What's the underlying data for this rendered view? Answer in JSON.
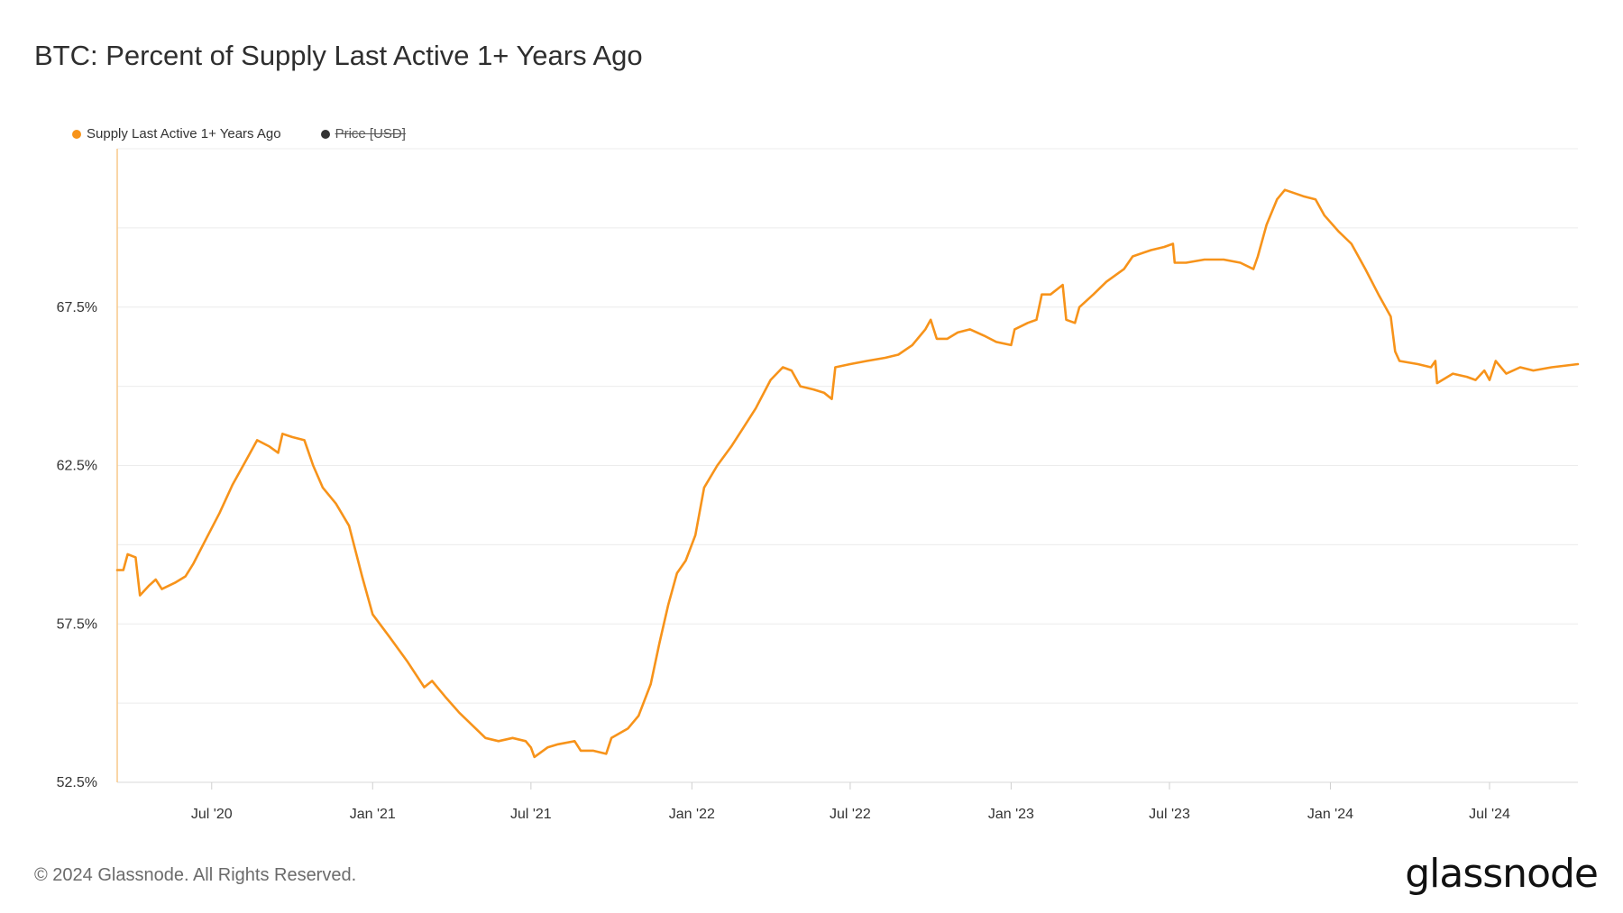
{
  "header": {
    "title": "BTC: Percent of Supply Last Active 1+ Years Ago"
  },
  "legend": [
    {
      "label": "Supply Last Active 1+ Years Ago",
      "color": "#f7931a",
      "disabled": false
    },
    {
      "label": "Price [USD]",
      "color": "#333333",
      "disabled": true
    }
  ],
  "footer": {
    "copyright": "© 2024 Glassnode. All Rights Reserved.",
    "brand": "glassnode"
  },
  "chart_data": {
    "type": "line",
    "xlim": [
      "2020-03-15",
      "2024-10-10"
    ],
    "ylim": [
      52.5,
      72.5
    ],
    "y_ticks": [
      {
        "value": 52.5,
        "label": "52.5%"
      },
      {
        "value": 57.5,
        "label": "57.5%"
      },
      {
        "value": 62.5,
        "label": "62.5%"
      },
      {
        "value": 67.5,
        "label": "67.5%"
      }
    ],
    "x_ticks": [
      {
        "date": "2020-07-01",
        "label": "Jul '20"
      },
      {
        "date": "2021-01-01",
        "label": "Jan '21"
      },
      {
        "date": "2021-07-01",
        "label": "Jul '21"
      },
      {
        "date": "2022-01-01",
        "label": "Jan '22"
      },
      {
        "date": "2022-07-01",
        "label": "Jul '22"
      },
      {
        "date": "2023-01-01",
        "label": "Jan '23"
      },
      {
        "date": "2023-07-01",
        "label": "Jul '23"
      },
      {
        "date": "2024-01-01",
        "label": "Jan '24"
      },
      {
        "date": "2024-07-01",
        "label": "Jul '24"
      }
    ],
    "grid": true,
    "legend_position": "top-left",
    "series": [
      {
        "name": "Supply Last Active 1+ Years Ago",
        "color": "#f7931a",
        "points": [
          [
            "2020-03-15",
            59.2
          ],
          [
            "2020-03-22",
            59.2
          ],
          [
            "2020-03-27",
            59.7
          ],
          [
            "2020-04-05",
            59.6
          ],
          [
            "2020-04-10",
            58.4
          ],
          [
            "2020-04-20",
            58.7
          ],
          [
            "2020-04-28",
            58.9
          ],
          [
            "2020-05-05",
            58.6
          ],
          [
            "2020-05-20",
            58.8
          ],
          [
            "2020-06-01",
            59.0
          ],
          [
            "2020-06-10",
            59.4
          ],
          [
            "2020-06-25",
            60.2
          ],
          [
            "2020-07-10",
            61.0
          ],
          [
            "2020-07-25",
            61.9
          ],
          [
            "2020-08-10",
            62.7
          ],
          [
            "2020-08-22",
            63.3
          ],
          [
            "2020-09-05",
            63.1
          ],
          [
            "2020-09-15",
            62.9
          ],
          [
            "2020-09-20",
            63.5
          ],
          [
            "2020-10-01",
            63.4
          ],
          [
            "2020-10-15",
            63.3
          ],
          [
            "2020-10-25",
            62.5
          ],
          [
            "2020-11-05",
            61.8
          ],
          [
            "2020-11-20",
            61.3
          ],
          [
            "2020-12-05",
            60.6
          ],
          [
            "2020-12-20",
            59.0
          ],
          [
            "2021-01-01",
            57.8
          ],
          [
            "2021-01-20",
            57.1
          ],
          [
            "2021-02-10",
            56.3
          ],
          [
            "2021-03-01",
            55.5
          ],
          [
            "2021-03-10",
            55.7
          ],
          [
            "2021-03-25",
            55.2
          ],
          [
            "2021-04-10",
            54.7
          ],
          [
            "2021-04-25",
            54.3
          ],
          [
            "2021-05-10",
            53.9
          ],
          [
            "2021-05-25",
            53.8
          ],
          [
            "2021-06-10",
            53.9
          ],
          [
            "2021-06-25",
            53.8
          ],
          [
            "2021-07-01",
            53.6
          ],
          [
            "2021-07-05",
            53.3
          ],
          [
            "2021-07-20",
            53.6
          ],
          [
            "2021-08-01",
            53.7
          ],
          [
            "2021-08-20",
            53.8
          ],
          [
            "2021-08-27",
            53.5
          ],
          [
            "2021-09-10",
            53.5
          ],
          [
            "2021-09-25",
            53.4
          ],
          [
            "2021-10-01",
            53.9
          ],
          [
            "2021-10-20",
            54.2
          ],
          [
            "2021-11-01",
            54.6
          ],
          [
            "2021-11-15",
            55.6
          ],
          [
            "2021-11-25",
            56.9
          ],
          [
            "2021-12-05",
            58.1
          ],
          [
            "2021-12-15",
            59.1
          ],
          [
            "2021-12-25",
            59.5
          ],
          [
            "2022-01-05",
            60.3
          ],
          [
            "2022-01-15",
            61.8
          ],
          [
            "2022-01-30",
            62.5
          ],
          [
            "2022-02-15",
            63.1
          ],
          [
            "2022-03-01",
            63.7
          ],
          [
            "2022-03-15",
            64.3
          ],
          [
            "2022-04-01",
            65.2
          ],
          [
            "2022-04-15",
            65.6
          ],
          [
            "2022-04-25",
            65.5
          ],
          [
            "2022-05-05",
            65.0
          ],
          [
            "2022-05-20",
            64.9
          ],
          [
            "2022-06-01",
            64.8
          ],
          [
            "2022-06-10",
            64.6
          ],
          [
            "2022-06-14",
            65.6
          ],
          [
            "2022-07-01",
            65.7
          ],
          [
            "2022-07-20",
            65.8
          ],
          [
            "2022-08-10",
            65.9
          ],
          [
            "2022-08-25",
            66.0
          ],
          [
            "2022-09-10",
            66.3
          ],
          [
            "2022-09-25",
            66.8
          ],
          [
            "2022-10-01",
            67.1
          ],
          [
            "2022-10-08",
            66.5
          ],
          [
            "2022-10-20",
            66.5
          ],
          [
            "2022-11-01",
            66.7
          ],
          [
            "2022-11-15",
            66.8
          ],
          [
            "2022-12-01",
            66.6
          ],
          [
            "2022-12-15",
            66.4
          ],
          [
            "2023-01-01",
            66.3
          ],
          [
            "2023-01-05",
            66.8
          ],
          [
            "2023-01-20",
            67.0
          ],
          [
            "2023-01-30",
            67.1
          ],
          [
            "2023-02-05",
            67.9
          ],
          [
            "2023-02-15",
            67.9
          ],
          [
            "2023-03-01",
            68.2
          ],
          [
            "2023-03-05",
            67.1
          ],
          [
            "2023-03-15",
            67.0
          ],
          [
            "2023-03-20",
            67.5
          ],
          [
            "2023-04-05",
            67.9
          ],
          [
            "2023-04-20",
            68.3
          ],
          [
            "2023-05-10",
            68.7
          ],
          [
            "2023-05-20",
            69.1
          ],
          [
            "2023-06-10",
            69.3
          ],
          [
            "2023-06-25",
            69.4
          ],
          [
            "2023-07-05",
            69.5
          ],
          [
            "2023-07-07",
            68.9
          ],
          [
            "2023-07-20",
            68.9
          ],
          [
            "2023-08-10",
            69.0
          ],
          [
            "2023-09-01",
            69.0
          ],
          [
            "2023-09-20",
            68.9
          ],
          [
            "2023-10-05",
            68.7
          ],
          [
            "2023-10-10",
            69.1
          ],
          [
            "2023-10-20",
            70.1
          ],
          [
            "2023-11-01",
            70.9
          ],
          [
            "2023-11-10",
            71.2
          ],
          [
            "2023-12-01",
            71.0
          ],
          [
            "2023-12-15",
            70.9
          ],
          [
            "2023-12-25",
            70.4
          ],
          [
            "2024-01-10",
            69.9
          ],
          [
            "2024-01-25",
            69.5
          ],
          [
            "2024-02-10",
            68.7
          ],
          [
            "2024-02-25",
            67.9
          ],
          [
            "2024-03-10",
            67.2
          ],
          [
            "2024-03-15",
            66.1
          ],
          [
            "2024-03-20",
            65.8
          ],
          [
            "2024-04-10",
            65.7
          ],
          [
            "2024-04-25",
            65.6
          ],
          [
            "2024-04-30",
            65.8
          ],
          [
            "2024-05-02",
            65.1
          ],
          [
            "2024-05-20",
            65.4
          ],
          [
            "2024-06-05",
            65.3
          ],
          [
            "2024-06-15",
            65.2
          ],
          [
            "2024-06-25",
            65.5
          ],
          [
            "2024-07-01",
            65.2
          ],
          [
            "2024-07-08",
            65.8
          ],
          [
            "2024-07-20",
            65.4
          ],
          [
            "2024-08-05",
            65.6
          ],
          [
            "2024-08-20",
            65.5
          ],
          [
            "2024-09-10",
            65.6
          ],
          [
            "2024-10-10",
            65.7
          ]
        ]
      }
    ]
  }
}
